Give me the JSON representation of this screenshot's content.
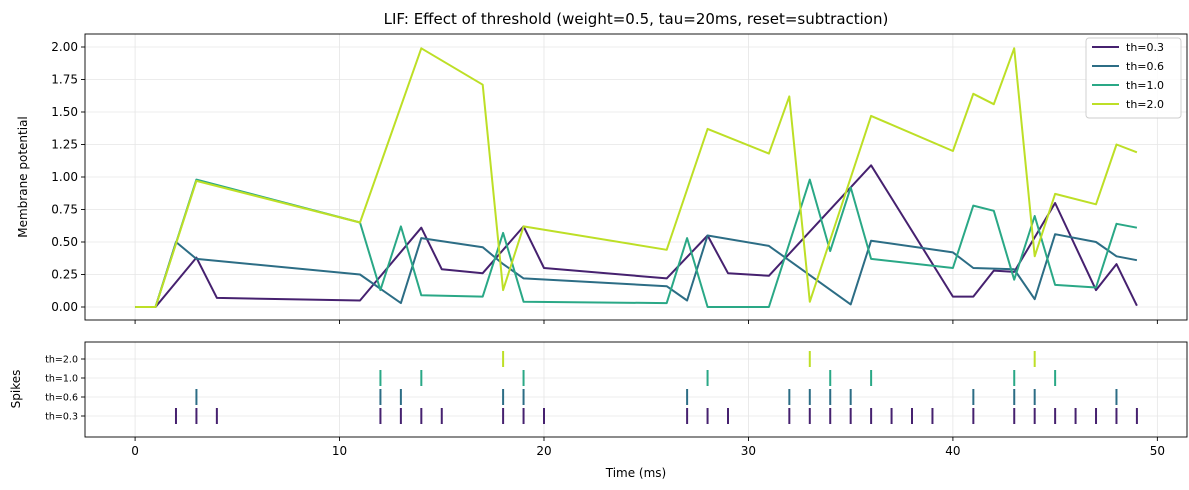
{
  "chart_data": {
    "type": "line",
    "title": "LIF: Effect of threshold  (weight=0.5, tau=20ms, reset=subtraction)",
    "xlabel": "Time (ms)",
    "ylabel": "Membrane potential",
    "raster_ylabel": "Spikes",
    "xlim": [
      -2.45,
      51.45
    ],
    "ylim": [
      -0.1,
      2.1
    ],
    "xticks": [
      "0",
      "10",
      "20",
      "30",
      "40",
      "50"
    ],
    "xtick_values": [
      0,
      10,
      20,
      30,
      40,
      50
    ],
    "yticks": [
      "0.00",
      "0.25",
      "0.50",
      "0.75",
      "1.00",
      "1.25",
      "1.50",
      "1.75",
      "2.00"
    ],
    "ytick_values": [
      0,
      0.25,
      0.5,
      0.75,
      1.0,
      1.25,
      1.5,
      1.75,
      2.0
    ],
    "grid": true,
    "legend_position": "top-right",
    "series": [
      {
        "name": "th=0.3",
        "color": "#46216f",
        "points": [
          [
            0,
            0
          ],
          [
            1,
            0
          ],
          [
            3,
            0.38
          ],
          [
            4,
            0.07
          ],
          [
            11,
            0.05
          ],
          [
            14,
            0.61
          ],
          [
            15,
            0.29
          ],
          [
            17,
            0.26
          ],
          [
            19,
            0.62
          ],
          [
            20,
            0.3
          ],
          [
            26,
            0.22
          ],
          [
            28,
            0.55
          ],
          [
            29,
            0.26
          ],
          [
            31,
            0.24
          ],
          [
            36,
            1.09
          ],
          [
            40,
            0.08
          ],
          [
            41,
            0.08
          ],
          [
            42,
            0.28
          ],
          [
            43,
            0.27
          ],
          [
            45,
            0.8
          ],
          [
            47,
            0.13
          ],
          [
            48,
            0.33
          ],
          [
            49,
            0.01
          ]
        ],
        "spikes": [
          2,
          3,
          4,
          12,
          13,
          14,
          15,
          18,
          19,
          20,
          27,
          28,
          29,
          32,
          33,
          34,
          35,
          36,
          37,
          38,
          39,
          41,
          43,
          44,
          45,
          46,
          47,
          48,
          49
        ]
      },
      {
        "name": "th=0.6",
        "color": "#2c6d85",
        "points": [
          [
            0,
            0
          ],
          [
            1,
            0
          ],
          [
            2,
            0.5
          ],
          [
            3,
            0.37
          ],
          [
            11,
            0.25
          ],
          [
            13,
            0.03
          ],
          [
            14,
            0.53
          ],
          [
            17,
            0.46
          ],
          [
            18,
            0.33
          ],
          [
            19,
            0.22
          ],
          [
            26,
            0.16
          ],
          [
            27,
            0.05
          ],
          [
            28,
            0.55
          ],
          [
            31,
            0.47
          ],
          [
            35,
            0.02
          ],
          [
            36,
            0.51
          ],
          [
            40,
            0.42
          ],
          [
            41,
            0.3
          ],
          [
            43,
            0.29
          ],
          [
            44,
            0.06
          ],
          [
            45,
            0.56
          ],
          [
            47,
            0.5
          ],
          [
            48,
            0.39
          ],
          [
            49,
            0.36
          ]
        ],
        "spikes": [
          3,
          12,
          13,
          18,
          19,
          27,
          32,
          33,
          34,
          35,
          41,
          43,
          44,
          48
        ]
      },
      {
        "name": "th=1.0",
        "color": "#2aa886",
        "points": [
          [
            0,
            0
          ],
          [
            1,
            0
          ],
          [
            3,
            0.98
          ],
          [
            11,
            0.65
          ],
          [
            12,
            0.13
          ],
          [
            13,
            0.62
          ],
          [
            14,
            0.09
          ],
          [
            17,
            0.08
          ],
          [
            18,
            0.57
          ],
          [
            19,
            0.04
          ],
          [
            26,
            0.03
          ],
          [
            27,
            0.53
          ],
          [
            28,
            0.0
          ],
          [
            31,
            0.0
          ],
          [
            33,
            0.98
          ],
          [
            34,
            0.43
          ],
          [
            35,
            0.92
          ],
          [
            36,
            0.37
          ],
          [
            40,
            0.3
          ],
          [
            41,
            0.78
          ],
          [
            42,
            0.74
          ],
          [
            43,
            0.21
          ],
          [
            44,
            0.7
          ],
          [
            45,
            0.17
          ],
          [
            47,
            0.15
          ],
          [
            48,
            0.64
          ],
          [
            49,
            0.61
          ]
        ],
        "spikes": [
          12,
          14,
          19,
          28,
          34,
          36,
          43,
          45
        ]
      },
      {
        "name": "th=2.0",
        "color": "#bddf26",
        "points": [
          [
            0,
            0
          ],
          [
            1,
            0
          ],
          [
            3,
            0.97
          ],
          [
            11,
            0.65
          ],
          [
            14,
            1.99
          ],
          [
            17,
            1.71
          ],
          [
            18,
            0.13
          ],
          [
            19,
            0.62
          ],
          [
            26,
            0.44
          ],
          [
            28,
            1.37
          ],
          [
            31,
            1.18
          ],
          [
            32,
            1.62
          ],
          [
            33,
            0.04
          ],
          [
            36,
            1.47
          ],
          [
            40,
            1.2
          ],
          [
            41,
            1.64
          ],
          [
            42,
            1.56
          ],
          [
            43,
            1.99
          ],
          [
            44,
            0.39
          ],
          [
            45,
            0.87
          ],
          [
            47,
            0.79
          ],
          [
            48,
            1.25
          ],
          [
            49,
            1.19
          ]
        ],
        "spikes": [
          18,
          33,
          44
        ]
      }
    ]
  }
}
